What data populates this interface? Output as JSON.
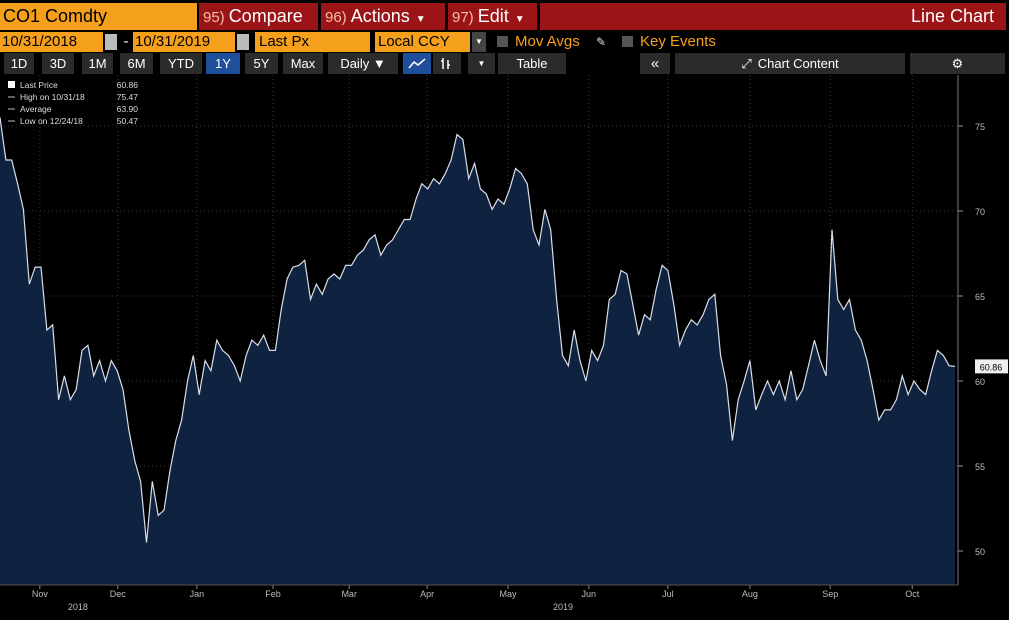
{
  "toolbar": {
    "security": "CO1 Comdty",
    "buttons": [
      {
        "key": "95)",
        "label": "Compare"
      },
      {
        "key": "96)",
        "label": "Actions"
      },
      {
        "key": "97)",
        "label": "Edit"
      }
    ],
    "view": "Line Chart"
  },
  "controls": {
    "start_date": "10/31/2018",
    "separator": "-",
    "end_date": "10/31/2019",
    "field": "Last Px",
    "currency": "Local CCY",
    "options": [
      "Mov Avgs",
      "Key Events"
    ]
  },
  "ranges": {
    "periods": [
      "1D",
      "3D",
      "1M",
      "6M",
      "YTD",
      "1Y",
      "5Y",
      "Max"
    ],
    "selected": 5,
    "frequency": "Daily ▼",
    "table": "Table",
    "chart_content": "Chart Content"
  },
  "chart_data": {
    "type": "area",
    "color": "#d9dee8",
    "fill": "#0f2340",
    "grid": true,
    "legend": [
      {
        "name": "Last Price",
        "value": 60.86
      },
      {
        "name": "High on 10/31/18",
        "value": 75.47
      },
      {
        "name": "Average",
        "value": 63.9,
        "value_label": "63.90"
      },
      {
        "name": "Low on 12/24/18",
        "value": 50.47
      }
    ],
    "values": [
      75.5,
      73.0,
      73.0,
      71.6,
      70.1,
      65.7,
      66.7,
      66.7,
      63.0,
      63.3,
      58.9,
      60.3,
      58.9,
      59.5,
      61.8,
      62.1,
      60.3,
      61.2,
      60.0,
      61.2,
      60.6,
      59.5,
      57.1,
      55.3,
      54.1,
      50.5,
      54.1,
      52.1,
      52.4,
      54.7,
      56.5,
      57.7,
      60.0,
      61.5,
      59.2,
      61.2,
      60.6,
      62.4,
      61.8,
      61.5,
      60.9,
      60.0,
      61.5,
      62.4,
      62.1,
      62.7,
      61.8,
      61.8,
      64.2,
      66.0,
      66.7,
      66.8,
      67.1,
      64.8,
      65.7,
      65.1,
      66.0,
      66.3,
      66.0,
      66.8,
      66.8,
      67.4,
      67.7,
      68.3,
      68.6,
      67.4,
      68.0,
      68.3,
      68.9,
      69.5,
      69.5,
      70.7,
      71.6,
      71.3,
      71.9,
      71.6,
      72.2,
      73.0,
      74.5,
      74.2,
      71.9,
      72.8,
      71.3,
      71.0,
      70.1,
      70.7,
      70.4,
      71.3,
      72.5,
      72.2,
      71.6,
      68.9,
      68.0,
      70.1,
      68.9,
      64.8,
      61.5,
      60.9,
      63.0,
      61.2,
      60.0,
      61.8,
      61.2,
      62.1,
      64.8,
      65.1,
      66.5,
      66.3,
      64.5,
      62.7,
      63.9,
      63.6,
      65.4,
      66.8,
      66.5,
      64.5,
      62.1,
      63.0,
      63.6,
      63.3,
      63.9,
      64.8,
      65.1,
      61.5,
      59.8,
      56.5,
      58.9,
      60.0,
      61.2,
      58.3,
      59.2,
      60.0,
      59.2,
      60.0,
      58.9,
      60.6,
      58.9,
      59.5,
      60.9,
      62.4,
      61.2,
      60.3,
      68.9,
      64.8,
      64.2,
      64.8,
      63.0,
      62.4,
      61.2,
      59.5,
      57.7,
      58.3,
      58.3,
      58.9,
      60.3,
      59.2,
      60.0,
      59.5,
      59.2,
      60.6,
      61.8,
      61.5,
      60.9,
      60.86
    ],
    "xlim": [
      0,
      163
    ],
    "xticks": [
      {
        "value": 6.8,
        "label": "Nov"
      },
      {
        "value": 20.1,
        "label": "Dec"
      },
      {
        "value": 33.6,
        "label": "Jan"
      },
      {
        "value": 46.6,
        "label": "Feb"
      },
      {
        "value": 59.6,
        "label": "Mar"
      },
      {
        "value": 72.9,
        "label": "Apr"
      },
      {
        "value": 86.7,
        "label": "May"
      },
      {
        "value": 100.5,
        "label": "Jun"
      },
      {
        "value": 114.0,
        "label": "Jul"
      },
      {
        "value": 128.0,
        "label": "Aug"
      },
      {
        "value": 141.7,
        "label": "Sep"
      },
      {
        "value": 155.7,
        "label": "Oct"
      }
    ],
    "year_labels": [
      {
        "value": 13.3,
        "label": "2018"
      },
      {
        "value": 96.1,
        "label": "2019"
      }
    ],
    "ylim": [
      48,
      78
    ],
    "yticks": [
      50,
      55,
      60,
      65,
      70,
      75
    ]
  }
}
